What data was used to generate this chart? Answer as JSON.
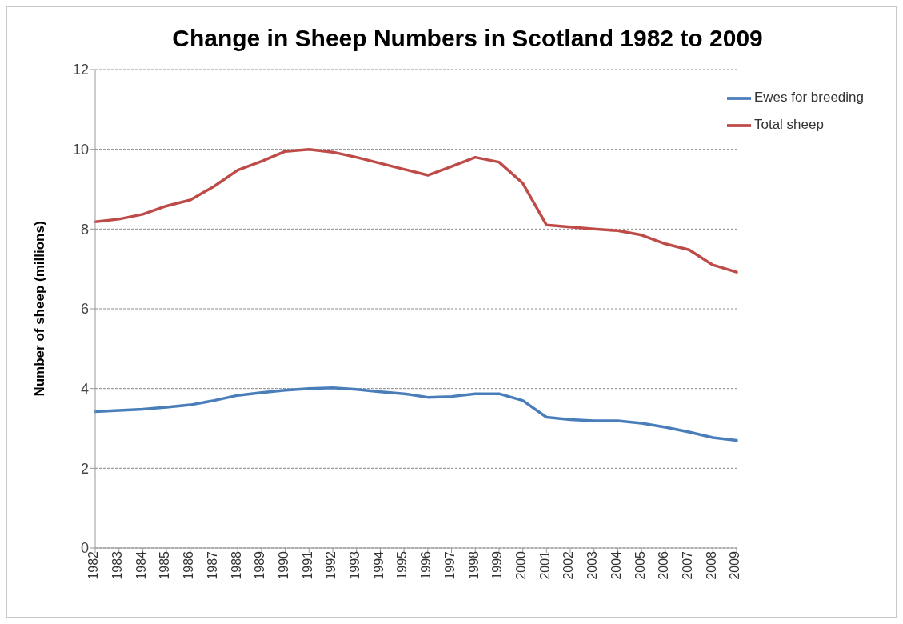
{
  "chart_data": {
    "type": "line",
    "title": "Change in Sheep Numbers in Scotland 1982 to 2009",
    "ylabel": "Number of sheep (millions)",
    "categories": [
      "1982",
      "1983",
      "1984",
      "1985",
      "1986",
      "1987",
      "1988",
      "1989",
      "1990",
      "1991",
      "1992",
      "1993",
      "1994",
      "1995",
      "1996",
      "1997",
      "1998",
      "1999",
      "2000",
      "2001",
      "2002",
      "2003",
      "2004",
      "2005",
      "2006",
      "2007",
      "2008",
      "2009"
    ],
    "series": [
      {
        "name": "Ewes for breeding",
        "color": "#4a7ebb",
        "values": [
          3.42,
          3.45,
          3.48,
          3.53,
          3.59,
          3.7,
          3.83,
          3.9,
          3.96,
          4.0,
          4.02,
          3.98,
          3.92,
          3.87,
          3.78,
          3.8,
          3.87,
          3.87,
          3.7,
          3.28,
          3.22,
          3.19,
          3.19,
          3.13,
          3.03,
          2.91,
          2.77,
          2.7
        ]
      },
      {
        "name": "Total sheep",
        "color": "#be4b48",
        "values": [
          8.18,
          8.25,
          8.37,
          8.58,
          8.73,
          9.07,
          9.48,
          9.7,
          9.95,
          10.0,
          9.93,
          9.8,
          9.65,
          9.5,
          9.35,
          9.57,
          9.8,
          9.68,
          9.15,
          8.1,
          8.05,
          8.0,
          7.96,
          7.85,
          7.63,
          7.48,
          7.1,
          6.92
        ]
      }
    ],
    "ylim": [
      0,
      12
    ],
    "yticks": [
      0,
      2,
      4,
      6,
      8,
      10,
      12
    ],
    "grid": "y",
    "legend": "top right",
    "line_style": "solid"
  }
}
